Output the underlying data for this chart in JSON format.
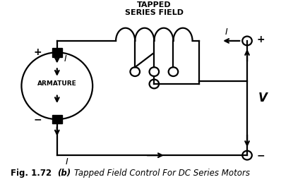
{
  "bg_color": "#ffffff",
  "line_color": "#000000",
  "fig_width": 4.15,
  "fig_height": 2.58,
  "caption_bold": "Fig. 1.72",
  "caption_italic_bold": " (b) ",
  "caption_italic": "Tapped Field Control For DC Series Motors"
}
